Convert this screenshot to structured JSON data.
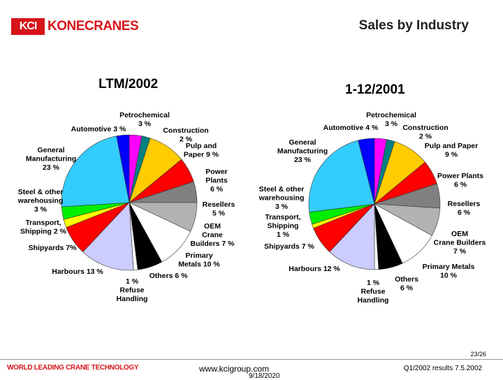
{
  "header": {
    "logo_mark": "KCI",
    "logo_text": "KONECRANES",
    "slide_title": "Sales by Industry"
  },
  "chart_data": [
    {
      "type": "pie",
      "title": "LTM/2002",
      "slices": [
        {
          "label": "Petrochemical\n3 %",
          "value": 3,
          "color": "#ff00ff"
        },
        {
          "label": "Construction\n2 %",
          "value": 2,
          "color": "#008080"
        },
        {
          "label": "Pulp and\nPaper 9 %",
          "value": 9,
          "color": "#ffcc00"
        },
        {
          "label": "Power\nPlants\n6 %",
          "value": 6,
          "color": "#ff0000"
        },
        {
          "label": "Resellers\n5 %",
          "value": 5,
          "color": "#808080"
        },
        {
          "label": "OEM\nCrane\nBuilders 7 %",
          "value": 7,
          "color": "#b2b2b2"
        },
        {
          "label": "Primary\nMetals 10 %",
          "value": 10,
          "color": "#ffffff"
        },
        {
          "label": "Others 6 %",
          "value": 6,
          "color": "#000000"
        },
        {
          "label": "1 %\nRefuse\nHandling",
          "value": 1,
          "color": "#ffffff"
        },
        {
          "label": "Harbours 13 %",
          "value": 13,
          "color": "#ccccff"
        },
        {
          "label": "Shipyards 7%",
          "value": 7,
          "color": "#ff0000"
        },
        {
          "label": "Transport,\nShipping 2 %",
          "value": 2,
          "color": "#ffff00"
        },
        {
          "label": "Steel & other\nwarehousing\n3 %",
          "value": 3,
          "color": "#00ee00"
        },
        {
          "label": "General\nManufacturing\n23 %",
          "value": 23,
          "color": "#33ccff"
        },
        {
          "label": "Automotive 3 %",
          "value": 3,
          "color": "#0000ff"
        }
      ]
    },
    {
      "type": "pie",
      "title": "1-12/2001",
      "slices": [
        {
          "label": "Petrochemical\n3 %",
          "value": 3,
          "color": "#ff00ff"
        },
        {
          "label": "Construction\n2 %",
          "value": 2,
          "color": "#008080"
        },
        {
          "label": "Pulp and Paper\n9 %",
          "value": 9,
          "color": "#ffcc00"
        },
        {
          "label": "Power Plants\n6 %",
          "value": 6,
          "color": "#ff0000"
        },
        {
          "label": "Resellers\n6 %",
          "value": 6,
          "color": "#808080"
        },
        {
          "label": "OEM\nCrane Builders\n7 %",
          "value": 7,
          "color": "#b2b2b2"
        },
        {
          "label": "Primary Metals\n10 %",
          "value": 10,
          "color": "#ffffff"
        },
        {
          "label": "Others\n6 %",
          "value": 6,
          "color": "#000000"
        },
        {
          "label": "1 %\nRefuse\nHandling",
          "value": 1,
          "color": "#ffffff"
        },
        {
          "label": "Harbours 12 %",
          "value": 12,
          "color": "#ccccff"
        },
        {
          "label": "Shipyards 7 %",
          "value": 7,
          "color": "#ff0000"
        },
        {
          "label": "Transport,\nShipping\n1 %",
          "value": 1,
          "color": "#ffff00"
        },
        {
          "label": "Steel & other\nwarehousing\n3 %",
          "value": 3,
          "color": "#00ee00"
        },
        {
          "label": "General\nManufacturing\n23 %",
          "value": 23,
          "color": "#33ccff"
        },
        {
          "label": "Automotive 4 %",
          "value": 4,
          "color": "#0000ff"
        }
      ]
    }
  ],
  "footer": {
    "page_number": "23/26",
    "tagline": "WORLD LEADING CRANE TECHNOLOGY",
    "website": "www.kcigroup.com",
    "date": "9/18/2020",
    "right_text": "Q1/2002 results 7.5.2002"
  }
}
